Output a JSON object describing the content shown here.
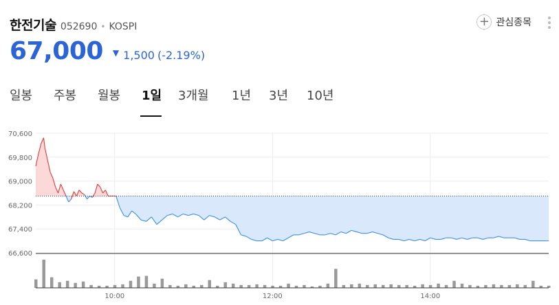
{
  "stock": {
    "name": "한전기술",
    "code": "052690",
    "separator": "•",
    "market": "KOSPI",
    "price": "67,000",
    "change_arrow": "▼",
    "change": "1,500",
    "change_rate": "(-2.19%)"
  },
  "favorite": {
    "label": "관심종목",
    "icon": "plus-icon"
  },
  "more_icon": "kebab-menu-icon",
  "tabs": [
    {
      "label": "일봉",
      "active": false
    },
    {
      "label": "주봉",
      "active": false
    },
    {
      "label": "월봉",
      "active": false
    },
    {
      "label": "1일",
      "active": true
    },
    {
      "label": "3개월",
      "active": false
    },
    {
      "label": "1년",
      "active": false
    },
    {
      "label": "3년",
      "active": false
    },
    {
      "label": "10년",
      "active": false
    }
  ],
  "colors": {
    "down": "#2b64d6",
    "up_line": "#e03c3c",
    "up_fill": "#fbd9d9",
    "down_line": "#3a8ee6",
    "down_fill": "#d9e9fb",
    "volume": "#999999"
  },
  "chart_data": {
    "type": "area",
    "reference_price": 68500,
    "ylim": [
      66600,
      70600
    ],
    "y_ticks": [
      "70,600",
      "69,800",
      "69,000",
      "68,200",
      "67,400",
      "66,600"
    ],
    "y_tick_values": [
      70600,
      69800,
      69000,
      68200,
      67400,
      66600
    ],
    "x_ticks": [
      "10:00",
      "12:00",
      "14:00"
    ],
    "x_tick_minutes": [
      600,
      720,
      840
    ],
    "xlim": [
      540,
      930
    ],
    "grid": true,
    "series": [
      {
        "x": [
          540,
          542,
          544,
          546,
          547,
          549,
          551,
          553,
          555,
          557,
          559,
          561,
          563,
          565,
          567,
          569,
          571,
          573,
          575,
          577,
          579,
          581,
          583,
          585,
          587,
          589,
          591,
          593,
          595,
          597,
          599,
          601,
          604,
          607,
          610,
          613,
          616,
          620,
          624,
          628,
          632,
          636,
          640,
          644,
          648,
          652,
          656,
          660,
          664,
          668,
          672,
          676,
          680,
          684,
          688,
          692,
          696,
          700,
          704,
          708,
          712,
          716,
          720,
          724,
          728,
          732,
          736,
          740,
          744,
          748,
          752,
          756,
          760,
          764,
          768,
          772,
          776,
          780,
          784,
          788,
          792,
          796,
          800,
          804,
          808,
          812,
          816,
          820,
          824,
          828,
          832,
          836,
          840,
          844,
          848,
          852,
          856,
          860,
          864,
          868,
          872,
          876,
          880,
          884,
          888,
          892,
          896,
          900,
          904,
          908,
          912,
          916,
          920,
          924,
          928,
          930
        ],
        "values": [
          69500,
          69900,
          70250,
          70450,
          70100,
          69700,
          69300,
          69100,
          68800,
          68600,
          68900,
          68700,
          68500,
          68300,
          68400,
          68650,
          68500,
          68700,
          68600,
          68550,
          68400,
          68500,
          68450,
          68600,
          68900,
          68800,
          68600,
          68700,
          68500,
          68500,
          68500,
          68500,
          68100,
          67850,
          67800,
          68000,
          67900,
          67700,
          67650,
          67800,
          67550,
          67700,
          67850,
          67900,
          67800,
          67900,
          67850,
          67900,
          67850,
          67700,
          67850,
          67800,
          67700,
          67800,
          67650,
          67550,
          67200,
          67150,
          67050,
          67000,
          67000,
          67100,
          67000,
          67050,
          67000,
          67100,
          67200,
          67200,
          67250,
          67300,
          67250,
          67200,
          67200,
          67250,
          67200,
          67300,
          67250,
          67350,
          67300,
          67250,
          67250,
          67300,
          67250,
          67200,
          67100,
          67050,
          67050,
          67000,
          67050,
          67000,
          67050,
          67000,
          67100,
          67050,
          67050,
          67100,
          67100,
          67050,
          67100,
          67050,
          67100,
          67100,
          67050,
          67100,
          67100,
          67150,
          67100,
          67100,
          67100,
          67050,
          67050,
          67000,
          67000,
          67000,
          67000,
          67000
        ]
      }
    ],
    "volume": {
      "x": [
        540,
        546,
        552,
        558,
        564,
        570,
        576,
        582,
        588,
        594,
        600,
        606,
        612,
        618,
        624,
        630,
        636,
        642,
        648,
        654,
        660,
        666,
        672,
        678,
        684,
        690,
        696,
        702,
        708,
        714,
        720,
        726,
        732,
        738,
        744,
        750,
        756,
        762,
        768,
        774,
        780,
        786,
        792,
        798,
        804,
        810,
        816,
        822,
        828,
        834,
        840,
        846,
        852,
        858,
        864,
        870,
        876,
        882,
        888,
        894,
        900,
        906,
        912,
        918,
        924,
        930
      ],
      "values": [
        12,
        40,
        15,
        8,
        10,
        7,
        9,
        4,
        3,
        3,
        4,
        5,
        10,
        16,
        17,
        6,
        13,
        4,
        3,
        5,
        3,
        4,
        11,
        3,
        8,
        6,
        4,
        4,
        5,
        4,
        3,
        3,
        6,
        3,
        4,
        2,
        3,
        6,
        27,
        4,
        5,
        6,
        4,
        5,
        4,
        5,
        4,
        4,
        3,
        5,
        4,
        6,
        4,
        10,
        6,
        4,
        3,
        4,
        5,
        4,
        4,
        5,
        4,
        10,
        3,
        3
      ]
    }
  }
}
